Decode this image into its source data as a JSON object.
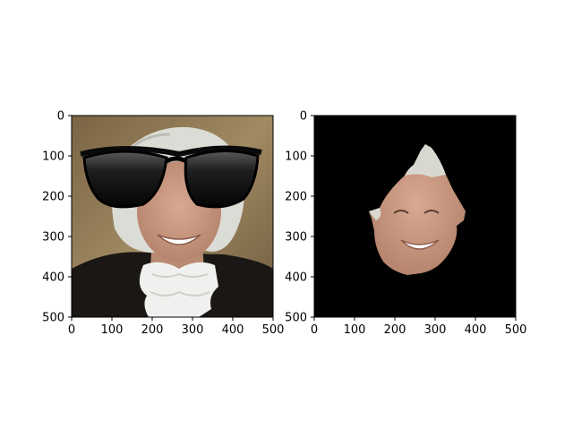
{
  "chart_data": [
    {
      "type": "image",
      "content": "photo of a smiling grey-haired woman in black robe with white lace collar, large black sunglasses overlaid on the upper face",
      "xlim": [
        0,
        500
      ],
      "ylim": [
        500,
        0
      ],
      "xticks": [
        "0",
        "100",
        "200",
        "300",
        "400",
        "500"
      ],
      "yticks": [
        "0",
        "100",
        "200",
        "300",
        "400",
        "500"
      ],
      "title": "",
      "xlabel": "",
      "ylabel": "",
      "colors": {
        "background": "#8a7450",
        "hair": "#dcdcd6",
        "skin": "#c99a82",
        "robe": "#1a1714",
        "collar": "#f2f2f2",
        "glasses": "#0a0a0a"
      }
    },
    {
      "type": "image",
      "content": "face segmentation mask: the face region cut out on a black background",
      "xlim": [
        0,
        500
      ],
      "ylim": [
        500,
        0
      ],
      "xticks": [
        "0",
        "100",
        "200",
        "300",
        "400",
        "500"
      ],
      "yticks": [
        "0",
        "100",
        "200",
        "300",
        "400",
        "500"
      ],
      "title": "",
      "xlabel": "",
      "ylabel": "",
      "colors": {
        "background": "#000000",
        "skin": "#c99a82",
        "hair": "#d8d8d0"
      }
    }
  ]
}
